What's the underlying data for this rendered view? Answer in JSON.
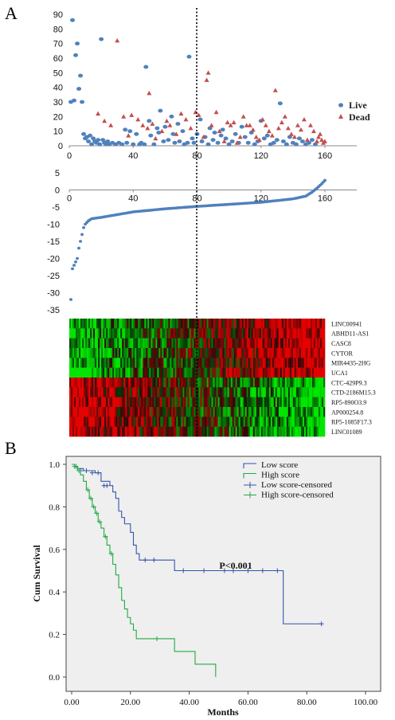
{
  "panel_labels": [
    "A",
    "B"
  ],
  "chart_data": [
    {
      "id": "scatter-top",
      "type": "scatter",
      "xlim": [
        0,
        160
      ],
      "ylim": [
        0,
        90
      ],
      "xticks": [
        0,
        40,
        80,
        120,
        160
      ],
      "yticks": [
        0,
        10,
        20,
        30,
        40,
        50,
        60,
        70,
        80,
        90
      ],
      "cutoff_x": 80,
      "legend_position": "right",
      "series": [
        {
          "name": "Live",
          "color": "#4f81bd",
          "marker": "circle",
          "points": [
            [
              1,
              30
            ],
            [
              2,
              86
            ],
            [
              3,
              31
            ],
            [
              4,
              62
            ],
            [
              5,
              70
            ],
            [
              6,
              39
            ],
            [
              7,
              48
            ],
            [
              8,
              30
            ],
            [
              9,
              8
            ],
            [
              10,
              5
            ],
            [
              11,
              6
            ],
            [
              12,
              3
            ],
            [
              13,
              7
            ],
            [
              14,
              1
            ],
            [
              15,
              5
            ],
            [
              16,
              3
            ],
            [
              17,
              2
            ],
            [
              18,
              4
            ],
            [
              19,
              1
            ],
            [
              20,
              73
            ],
            [
              21,
              4
            ],
            [
              22,
              2
            ],
            [
              23,
              1
            ],
            [
              24,
              3
            ],
            [
              25,
              1
            ],
            [
              27,
              2
            ],
            [
              29,
              1
            ],
            [
              31,
              2
            ],
            [
              33,
              1
            ],
            [
              35,
              11
            ],
            [
              36,
              2
            ],
            [
              38,
              10
            ],
            [
              40,
              1
            ],
            [
              42,
              8
            ],
            [
              44,
              1
            ],
            [
              45,
              2
            ],
            [
              47,
              1
            ],
            [
              48,
              54
            ],
            [
              50,
              17
            ],
            [
              51,
              7
            ],
            [
              53,
              1
            ],
            [
              55,
              12
            ],
            [
              56,
              9
            ],
            [
              57,
              24
            ],
            [
              59,
              3
            ],
            [
              60,
              13
            ],
            [
              62,
              4
            ],
            [
              64,
              20
            ],
            [
              65,
              8
            ],
            [
              66,
              2
            ],
            [
              68,
              15
            ],
            [
              69,
              3
            ],
            [
              71,
              10
            ],
            [
              72,
              1
            ],
            [
              74,
              2
            ],
            [
              75,
              61
            ],
            [
              77,
              5
            ],
            [
              78,
              2
            ],
            [
              80,
              8
            ],
            [
              82,
              18
            ],
            [
              83,
              3
            ],
            [
              85,
              6
            ],
            [
              87,
              1
            ],
            [
              88,
              12
            ],
            [
              90,
              4
            ],
            [
              91,
              9
            ],
            [
              93,
              2
            ],
            [
              95,
              7
            ],
            [
              96,
              11
            ],
            [
              98,
              5
            ],
            [
              100,
              1
            ],
            [
              102,
              3
            ],
            [
              104,
              8
            ],
            [
              106,
              2
            ],
            [
              108,
              13
            ],
            [
              110,
              6
            ],
            [
              112,
              2
            ],
            [
              114,
              9
            ],
            [
              116,
              1
            ],
            [
              118,
              3
            ],
            [
              120,
              17
            ],
            [
              122,
              5
            ],
            [
              124,
              7
            ],
            [
              126,
              1
            ],
            [
              128,
              2
            ],
            [
              130,
              4
            ],
            [
              132,
              29
            ],
            [
              134,
              3
            ],
            [
              136,
              1
            ],
            [
              138,
              6
            ],
            [
              140,
              2
            ],
            [
              142,
              1
            ],
            [
              144,
              5
            ],
            [
              146,
              3
            ],
            [
              148,
              1
            ],
            [
              150,
              2
            ],
            [
              152,
              4
            ],
            [
              154,
              1
            ]
          ]
        },
        {
          "name": "Dead",
          "color": "#c0504d",
          "marker": "triangle",
          "points": [
            [
              18,
              22
            ],
            [
              22,
              17
            ],
            [
              26,
              14
            ],
            [
              30,
              72
            ],
            [
              34,
              20
            ],
            [
              37,
              7
            ],
            [
              39,
              21
            ],
            [
              43,
              18
            ],
            [
              46,
              14
            ],
            [
              49,
              12
            ],
            [
              50,
              36
            ],
            [
              52,
              15
            ],
            [
              54,
              5
            ],
            [
              58,
              10
            ],
            [
              61,
              17
            ],
            [
              63,
              14
            ],
            [
              67,
              8
            ],
            [
              70,
              22
            ],
            [
              73,
              18
            ],
            [
              76,
              12
            ],
            [
              79,
              23
            ],
            [
              81,
              21
            ],
            [
              84,
              6
            ],
            [
              86,
              45
            ],
            [
              87,
              50
            ],
            [
              89,
              14
            ],
            [
              92,
              23
            ],
            [
              94,
              10
            ],
            [
              97,
              3
            ],
            [
              99,
              16
            ],
            [
              101,
              14
            ],
            [
              103,
              16
            ],
            [
              105,
              2
            ],
            [
              107,
              6
            ],
            [
              109,
              20
            ],
            [
              111,
              14
            ],
            [
              113,
              14
            ],
            [
              115,
              11
            ],
            [
              117,
              6
            ],
            [
              119,
              4
            ],
            [
              121,
              18
            ],
            [
              123,
              14
            ],
            [
              125,
              10
            ],
            [
              127,
              7
            ],
            [
              129,
              38
            ],
            [
              131,
              12
            ],
            [
              133,
              16
            ],
            [
              135,
              20
            ],
            [
              137,
              12
            ],
            [
              139,
              8
            ],
            [
              141,
              6
            ],
            [
              143,
              14
            ],
            [
              145,
              11
            ],
            [
              147,
              18
            ],
            [
              149,
              4
            ],
            [
              151,
              14
            ],
            [
              153,
              10
            ],
            [
              155,
              3
            ],
            [
              156,
              6
            ],
            [
              157,
              8
            ],
            [
              158,
              4
            ],
            [
              159,
              2
            ],
            [
              160,
              3
            ]
          ]
        }
      ]
    },
    {
      "id": "risk-score",
      "type": "scatter",
      "xlim": [
        0,
        160
      ],
      "ylim": [
        -35,
        5
      ],
      "xticks": [
        0,
        40,
        80,
        120,
        160
      ],
      "yticks": [
        5,
        0,
        -5,
        -10,
        -15,
        -20,
        -25,
        -30,
        -35
      ],
      "cutoff_x": 80,
      "color": "#4f81bd",
      "anchors": [
        [
          1,
          -32
        ],
        [
          2,
          -23
        ],
        [
          3,
          -22
        ],
        [
          4,
          -21
        ],
        [
          5,
          -20
        ],
        [
          6,
          -17
        ],
        [
          7,
          -15
        ],
        [
          8,
          -13
        ],
        [
          9,
          -11
        ],
        [
          10,
          -10
        ],
        [
          12,
          -9
        ],
        [
          14,
          -8.4
        ],
        [
          20,
          -8.0
        ],
        [
          30,
          -7.2
        ],
        [
          40,
          -6.4
        ],
        [
          60,
          -5.5
        ],
        [
          80,
          -4.8
        ],
        [
          100,
          -4.2
        ],
        [
          120,
          -3.6
        ],
        [
          140,
          -2.6
        ],
        [
          148,
          -1.8
        ],
        [
          152,
          -0.6
        ],
        [
          155,
          0.5
        ],
        [
          158,
          1.8
        ],
        [
          160,
          2.8
        ]
      ]
    },
    {
      "id": "heatmap",
      "type": "heatmap",
      "genes": [
        "LINC00941",
        "ABHD11-AS1",
        "CASC8",
        "CYTOR",
        "MIR4435-2HG",
        "UCA1",
        "CTC-429P9.3",
        "CTD-2186M15.3",
        "RP5-890O3.9",
        "AP000254.8",
        "RP5-1085F17.3",
        "LINC01089"
      ],
      "low_color": "#22d322",
      "high_color": "#e21818",
      "mid_color": "#000000"
    },
    {
      "id": "km-curve",
      "type": "line",
      "xlabel": "Months",
      "ylabel": "Cum Survival",
      "xlim": [
        0,
        100
      ],
      "ylim": [
        0,
        1.0
      ],
      "xticks": [
        "0.00",
        "20.00",
        "40.00",
        "60.00",
        "80.00",
        "100.00"
      ],
      "yticks": [
        "0.0",
        "0.2",
        "0.4",
        "0.6",
        "0.8",
        "1.0"
      ],
      "annotation": "P<0.001",
      "series": [
        {
          "name": "Low score",
          "censored_name": "Low score-censored",
          "color": "#3355aa",
          "steps": [
            [
              0,
              1.0
            ],
            [
              1,
              0.99
            ],
            [
              2,
              0.98
            ],
            [
              4,
              0.97
            ],
            [
              8,
              0.96
            ],
            [
              10,
              0.92
            ],
            [
              13,
              0.9
            ],
            [
              14,
              0.87
            ],
            [
              15,
              0.84
            ],
            [
              16,
              0.78
            ],
            [
              17,
              0.75
            ],
            [
              18,
              0.72
            ],
            [
              20,
              0.68
            ],
            [
              21,
              0.62
            ],
            [
              22,
              0.58
            ],
            [
              23,
              0.55
            ],
            [
              30,
              0.55
            ],
            [
              35,
              0.5
            ],
            [
              72,
              0.5
            ],
            [
              72,
              0.25
            ],
            [
              85,
              0.25
            ]
          ],
          "censored": [
            [
              3,
              0.97
            ],
            [
              5,
              0.97
            ],
            [
              7,
              0.96
            ],
            [
              9,
              0.96
            ],
            [
              11,
              0.9
            ],
            [
              12,
              0.9
            ],
            [
              25,
              0.55
            ],
            [
              28,
              0.55
            ],
            [
              38,
              0.5
            ],
            [
              45,
              0.5
            ],
            [
              52,
              0.5
            ],
            [
              55,
              0.5
            ],
            [
              60,
              0.5
            ],
            [
              65,
              0.5
            ],
            [
              70,
              0.5
            ],
            [
              85,
              0.25
            ]
          ]
        },
        {
          "name": "High score",
          "censored_name": "High score-censored",
          "color": "#22aa44",
          "steps": [
            [
              0,
              1.0
            ],
            [
              1,
              0.99
            ],
            [
              2,
              0.97
            ],
            [
              3,
              0.95
            ],
            [
              4,
              0.92
            ],
            [
              5,
              0.88
            ],
            [
              6,
              0.84
            ],
            [
              7,
              0.8
            ],
            [
              8,
              0.77
            ],
            [
              9,
              0.73
            ],
            [
              10,
              0.7
            ],
            [
              11,
              0.66
            ],
            [
              12,
              0.62
            ],
            [
              13,
              0.58
            ],
            [
              14,
              0.53
            ],
            [
              15,
              0.48
            ],
            [
              16,
              0.42
            ],
            [
              17,
              0.36
            ],
            [
              18,
              0.32
            ],
            [
              19,
              0.28
            ],
            [
              20,
              0.25
            ],
            [
              21,
              0.22
            ],
            [
              22,
              0.18
            ],
            [
              32,
              0.18
            ],
            [
              35,
              0.12
            ],
            [
              41,
              0.12
            ],
            [
              42,
              0.06
            ],
            [
              48,
              0.06
            ],
            [
              49,
              0.0
            ]
          ],
          "censored": [
            [
              1,
              0.99
            ],
            [
              1.5,
              0.99
            ],
            [
              2.5,
              0.97
            ],
            [
              5.5,
              0.88
            ],
            [
              6.5,
              0.84
            ],
            [
              7.5,
              0.8
            ],
            [
              8.5,
              0.77
            ],
            [
              9.5,
              0.73
            ],
            [
              11.5,
              0.66
            ],
            [
              13.5,
              0.58
            ],
            [
              29,
              0.18
            ]
          ]
        }
      ]
    }
  ]
}
